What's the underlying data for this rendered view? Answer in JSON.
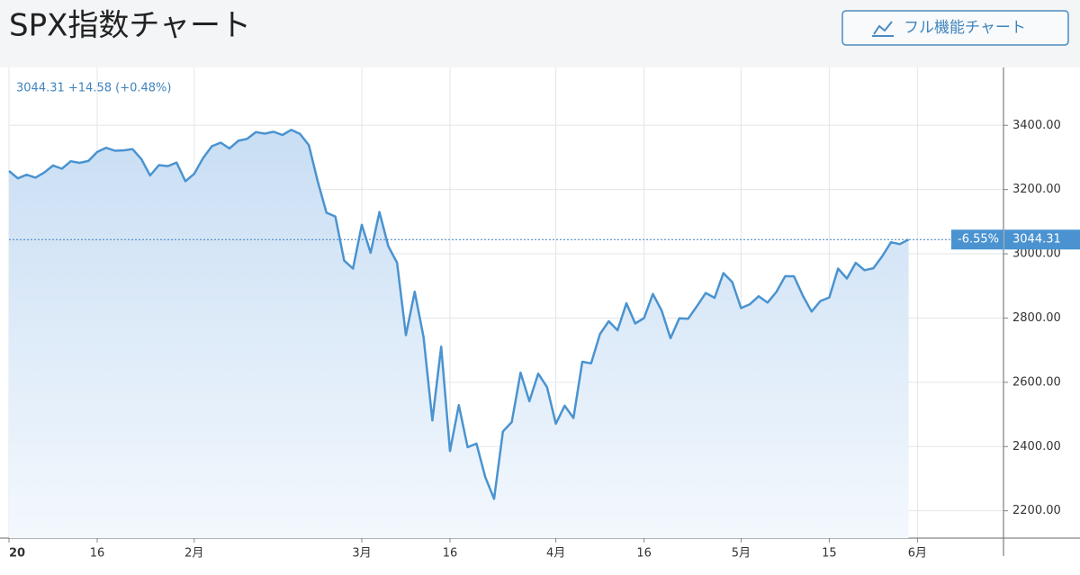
{
  "chart_data": {
    "type": "line",
    "title": "SPX指数チャート",
    "button": "フル機能チャート",
    "quote": "3044.31 +14.58 (+0.48%)",
    "last_change": "-6.55%",
    "last_price": "3044.31",
    "color": "#4a93d0",
    "grid": true,
    "categories": [
      "20",
      null,
      null,
      null,
      null,
      null,
      null,
      null,
      null,
      null,
      "16",
      null,
      null,
      null,
      null,
      null,
      null,
      null,
      null,
      null,
      null,
      "2月",
      null,
      null,
      null,
      null,
      null,
      null,
      null,
      null,
      null,
      null,
      null,
      null,
      null,
      null,
      null,
      null,
      null,
      null,
      "3月",
      null,
      null,
      null,
      null,
      null,
      null,
      null,
      null,
      null,
      "16",
      null,
      null,
      null,
      null,
      null,
      null,
      null,
      null,
      null,
      null,
      null,
      "4月",
      null,
      null,
      null,
      null,
      null,
      null,
      null,
      null,
      null,
      "16",
      null,
      null,
      null,
      null,
      null,
      null,
      null,
      null,
      null,
      null,
      "5月",
      null,
      null,
      null,
      null,
      null,
      null,
      null,
      null,
      null,
      "15",
      null,
      null,
      null,
      null,
      null,
      null,
      null,
      null,
      null,
      "6月"
    ],
    "values": [
      3258,
      3235,
      3246,
      3237,
      3253,
      3275,
      3265,
      3288,
      3283,
      3289,
      3317,
      3330,
      3321,
      3322,
      3326,
      3295,
      3244,
      3276,
      3273,
      3284,
      3226,
      3249,
      3298,
      3335,
      3346,
      3328,
      3352,
      3358,
      3379,
      3374,
      3380,
      3370,
      3386,
      3373,
      3338,
      3226,
      3128,
      3116,
      2979,
      2954,
      3090,
      3003,
      3130,
      3024,
      2972,
      2747,
      2882,
      2741,
      2481,
      2711,
      2386,
      2529,
      2398,
      2409,
      2305,
      2237,
      2447,
      2476,
      2630,
      2541,
      2627,
      2585,
      2471,
      2527,
      2489,
      2664,
      2659,
      2750,
      2790,
      2762,
      2846,
      2783,
      2800,
      2875,
      2823,
      2737,
      2799,
      2798,
      2837,
      2878,
      2863,
      2940,
      2912,
      2831,
      2843,
      2868,
      2848,
      2881,
      2930,
      2930,
      2870,
      2820,
      2853,
      2864,
      2954,
      2923,
      2972,
      2949,
      2955,
      2992,
      3036,
      3030,
      3044.31,
      null
    ],
    "ylim": [
      2115,
      3580
    ],
    "yticks": [
      {
        "value": 2200,
        "label": "2200.00"
      },
      {
        "value": 2400,
        "label": "2400.00"
      },
      {
        "value": 2600,
        "label": "2600.00"
      },
      {
        "value": 2800,
        "label": "2800.00"
      },
      {
        "value": 3000,
        "label": "3000.00"
      },
      {
        "value": 3200,
        "label": "3200.00"
      },
      {
        "value": 3400,
        "label": "3400.00"
      }
    ]
  }
}
